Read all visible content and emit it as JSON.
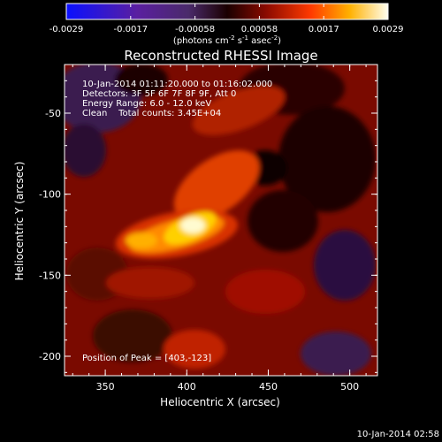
{
  "colorbar": {
    "tick_labels": [
      "-0.0029",
      "-0.0017",
      "-0.00058",
      "0.00058",
      "0.0017",
      "0.0029"
    ],
    "units_label": "(photons cm",
    "units_exp1": "-2",
    "units_mid": " s",
    "units_exp2": "-1",
    "units_mid2": " asec",
    "units_exp3": "-2",
    "units_end": ")"
  },
  "title": "Reconstructed RHESSI Image",
  "info": {
    "line1": "10-Jan-2014 01:11:20.000 to 01:16:02.000",
    "line2": "Detectors: 3F 5F 6F 7F 8F 9F, Att 0",
    "line3": "Energy Range: 6.0 - 12.0 keV",
    "line4": "Clean    Total counts: 3.45E+04",
    "peak": "Position of Peak = [403,-123]"
  },
  "axes": {
    "x_label": "Heliocentric X (arcsec)",
    "y_label": "Heliocentric Y (arcsec)",
    "x_ticks": [
      "350",
      "400",
      "450",
      "500"
    ],
    "y_ticks": [
      "-50",
      "-100",
      "-150",
      "-200"
    ],
    "x_range": [
      325,
      517
    ],
    "y_range": [
      -212,
      -20
    ],
    "x_tick_values": [
      350,
      400,
      450,
      500
    ],
    "y_tick_values": [
      -50,
      -100,
      -150,
      -200
    ]
  },
  "timestamp": "10-Jan-2014 02:58"
}
